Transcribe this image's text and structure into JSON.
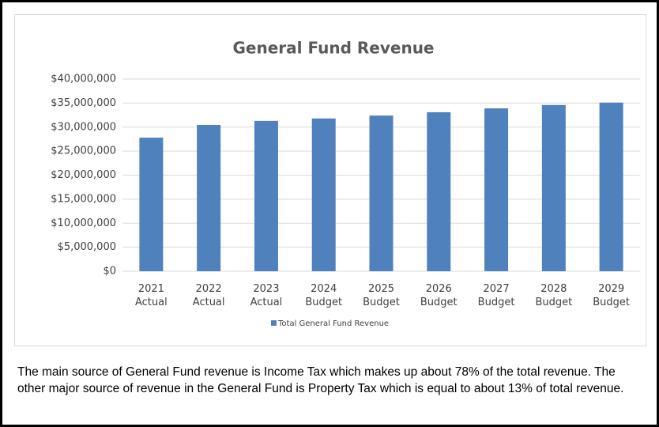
{
  "chart_data": {
    "type": "bar",
    "title": "General Fund Revenue",
    "categories": [
      "2021 Actual",
      "2022 Actual",
      "2023 Actual",
      "2024 Budget",
      "2025 Budget",
      "2026 Budget",
      "2027 Budget",
      "2028 Budget",
      "2029 Budget"
    ],
    "series": [
      {
        "name": "Total General Fund Revenue",
        "color": "#4f81bd",
        "values": [
          27800000,
          30450000,
          31300000,
          31800000,
          32400000,
          33100000,
          33900000,
          34600000,
          35100000
        ]
      }
    ],
    "ylim": [
      0,
      40000000
    ],
    "yticks": [
      {
        "value": 0,
        "label": "$0"
      },
      {
        "value": 5000000,
        "label": "$5,000,000"
      },
      {
        "value": 10000000,
        "label": "$10,000,000"
      },
      {
        "value": 15000000,
        "label": "$15,000,000"
      },
      {
        "value": 20000000,
        "label": "$20,000,000"
      },
      {
        "value": 25000000,
        "label": "$25,000,000"
      },
      {
        "value": 30000000,
        "label": "$30,000,000"
      },
      {
        "value": 35000000,
        "label": "$35,000,000"
      },
      {
        "value": 40000000,
        "label": "$40,000,000"
      }
    ],
    "grid": true,
    "legend": "bottom"
  },
  "text": "The main source of General Fund revenue is Income Tax which makes up about 78% of the total revenue. The other major source of revenue in the General Fund is Property Tax which is equal to about 13% of total revenue."
}
